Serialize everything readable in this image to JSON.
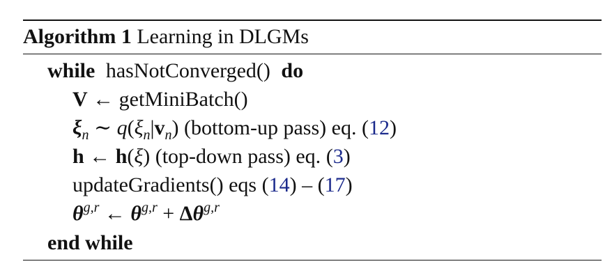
{
  "algorithm": {
    "label": "Algorithm 1",
    "title": "Learning in DLGMs"
  },
  "lines": {
    "while_kw": "while",
    "while_cond": "hasNotConverged()",
    "do_kw": "do",
    "l1_lhs": "V",
    "l1_arrow": "←",
    "l1_rhs": "getMiniBatch()",
    "l2_xi": "ξ",
    "l2_sub": "n",
    "l2_sim": "∼",
    "l2_q": "q",
    "l2_open": "(",
    "l2_xi2": "ξ",
    "l2_sub2": "n",
    "l2_bar": "|",
    "l2_v": "v",
    "l2_sub3": "n",
    "l2_close": ")",
    "l2_text": "(bottom-up pass) eq.",
    "l2_ref": "12",
    "l3_h": "h",
    "l3_arrow": "←",
    "l3_h2": "h",
    "l3_open": "(",
    "l3_xi": "ξ",
    "l3_close": ")",
    "l3_text": "(top-down pass) eq.",
    "l3_ref": "3",
    "l4_text": "updateGradients() eqs",
    "l4_ref1": "14",
    "l4_dash": "–",
    "l4_ref2": "17",
    "l5_theta": "θ",
    "l5_sup": "g,r",
    "l5_arrow": "←",
    "l5_theta2": "θ",
    "l5_sup2": "g,r",
    "l5_plus": "+",
    "l5_delta": "Δ",
    "l5_theta3": "θ",
    "l5_sup3": "g,r",
    "end_kw": "end while"
  },
  "colors": {
    "text": "#111111",
    "reference": "#1b2a8c"
  }
}
